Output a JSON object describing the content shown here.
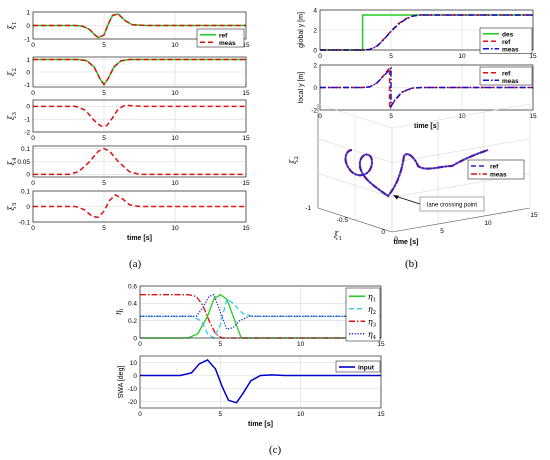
{
  "captions": {
    "a": "(a)",
    "b": "(b)",
    "c": "(c)"
  },
  "colors": {
    "ref": "#22cc22",
    "meas": "#dd1111",
    "des": "#22cc22",
    "ref_b": "#dd1111",
    "meas_b": "#1111cc",
    "eta1": "#22cc22",
    "eta2": "#33ccee",
    "eta3": "#dd1111",
    "eta4": "#2222cc",
    "input": "#0000cc",
    "grid": "#d9d9d9"
  },
  "chart_data": [
    {
      "id": "xi1",
      "type": "line",
      "panel": "a",
      "ylabel_main": "ξ",
      "ylabel_sub": "1",
      "xlim": [
        0,
        15
      ],
      "ylim": [
        -1,
        1
      ],
      "xticks": [
        0,
        5,
        10,
        15
      ],
      "yticks": [
        -1,
        0,
        1
      ],
      "legend": "top-right",
      "series": [
        {
          "name": "ref",
          "style": "solid",
          "color": "#22cc22",
          "x": [
            0,
            3,
            3.5,
            4,
            4.3,
            4.6,
            5,
            5.3,
            5.6,
            6,
            6.5,
            7,
            8,
            15
          ],
          "y": [
            0,
            0,
            -0.05,
            -0.3,
            -0.65,
            -0.9,
            -0.7,
            0.1,
            0.75,
            0.85,
            0.35,
            0.05,
            0,
            0
          ]
        },
        {
          "name": "meas",
          "style": "dashed",
          "color": "#dd1111",
          "x": [
            0,
            3,
            3.5,
            4,
            4.3,
            4.6,
            5,
            5.3,
            5.6,
            6,
            6.5,
            7,
            8,
            15
          ],
          "y": [
            0,
            0,
            -0.05,
            -0.3,
            -0.65,
            -0.9,
            -0.7,
            0.1,
            0.75,
            0.85,
            0.35,
            0.05,
            0,
            0
          ]
        }
      ]
    },
    {
      "id": "xi2",
      "type": "line",
      "panel": "a",
      "ylabel_main": "ξ",
      "ylabel_sub": "2",
      "xlim": [
        0,
        15
      ],
      "ylim": [
        -1.2,
        1.2
      ],
      "xticks": [
        0,
        5,
        10,
        15
      ],
      "yticks": [
        -1,
        0,
        1
      ],
      "series": [
        {
          "name": "ref",
          "style": "solid",
          "color": "#22cc22",
          "x": [
            0,
            3.2,
            3.8,
            4.3,
            4.7,
            5,
            5.3,
            5.7,
            6.2,
            6.8,
            15
          ],
          "y": [
            1,
            1,
            0.9,
            0.4,
            -0.5,
            -1,
            -0.5,
            0.4,
            0.9,
            1,
            1
          ]
        },
        {
          "name": "meas",
          "style": "dashed",
          "color": "#dd1111",
          "x": [
            0,
            3.2,
            3.8,
            4.3,
            4.7,
            5,
            5.3,
            5.7,
            6.2,
            6.8,
            15
          ],
          "y": [
            1,
            1,
            0.9,
            0.4,
            -0.5,
            -1,
            -0.5,
            0.4,
            0.9,
            1,
            1
          ]
        }
      ]
    },
    {
      "id": "xi3",
      "type": "line",
      "panel": "a",
      "ylabel_main": "ξ",
      "ylabel_sub": "3",
      "xlim": [
        0,
        15
      ],
      "ylim": [
        -2,
        0.5
      ],
      "xticks": [
        0,
        5,
        10,
        15
      ],
      "yticks": [
        -2,
        -1,
        0
      ],
      "series": [
        {
          "name": "meas",
          "style": "dashed",
          "color": "#dd1111",
          "x": [
            0,
            3,
            3.7,
            4.3,
            4.8,
            5.2,
            5.6,
            6,
            6.5,
            7,
            8,
            15
          ],
          "y": [
            0,
            0,
            -0.3,
            -1.1,
            -1.55,
            -1.5,
            -0.9,
            -0.2,
            0.1,
            0.05,
            0,
            0
          ]
        }
      ]
    },
    {
      "id": "xi4",
      "type": "line",
      "panel": "a",
      "ylabel_main": "ξ",
      "ylabel_sub": "4",
      "xlim": [
        0,
        15
      ],
      "ylim": [
        -0.01,
        0.11
      ],
      "xticks": [
        0,
        5,
        10,
        15
      ],
      "yticks": [
        0,
        0.05,
        0.1
      ],
      "series": [
        {
          "name": "meas",
          "style": "dashed",
          "color": "#dd1111",
          "x": [
            0,
            2.5,
            3.2,
            4,
            4.6,
            5,
            5.4,
            6,
            6.8,
            7.5,
            15
          ],
          "y": [
            0,
            0,
            0.01,
            0.05,
            0.09,
            0.1,
            0.09,
            0.05,
            0.01,
            0,
            0
          ]
        }
      ]
    },
    {
      "id": "xi5",
      "type": "line",
      "panel": "a",
      "ylabel_main": "ξ",
      "ylabel_sub": "5",
      "xlim": [
        0,
        15
      ],
      "ylim": [
        -0.1,
        0.1
      ],
      "xticks": [
        0,
        5,
        10,
        15
      ],
      "yticks": [
        -0.1,
        0,
        0.1
      ],
      "xlabel": "time [s]",
      "series": [
        {
          "name": "meas",
          "style": "dashed",
          "color": "#dd1111",
          "x": [
            0,
            3,
            3.6,
            4.2,
            4.6,
            5,
            5.4,
            5.8,
            6.3,
            6.8,
            7.5,
            15
          ],
          "y": [
            0,
            0,
            -0.02,
            -0.065,
            -0.07,
            -0.03,
            0.04,
            0.075,
            0.05,
            0.01,
            0,
            0
          ]
        }
      ]
    },
    {
      "id": "globaly",
      "type": "line",
      "panel": "b",
      "ylabel": "global y [m]",
      "xlim": [
        0,
        15
      ],
      "ylim": [
        0,
        4
      ],
      "xticks": [
        0,
        5,
        10,
        15
      ],
      "yticks": [
        0,
        2,
        4
      ],
      "legend": "bottom-right",
      "series": [
        {
          "name": "des",
          "style": "solid",
          "color": "#22cc22",
          "x": [
            0,
            3,
            3,
            15
          ],
          "y": [
            0,
            0,
            3.5,
            3.5
          ]
        },
        {
          "name": "ref",
          "style": "dashed",
          "color": "#dd1111",
          "x": [
            0,
            3,
            3.5,
            4,
            4.5,
            5,
            5.5,
            6,
            6.5,
            7,
            15
          ],
          "y": [
            0,
            0,
            0.05,
            0.4,
            1.1,
            1.9,
            2.6,
            3.1,
            3.4,
            3.5,
            3.5
          ]
        },
        {
          "name": "meas",
          "style": "dashdot",
          "color": "#1111cc",
          "x": [
            0,
            3,
            3.5,
            4,
            4.5,
            5,
            5.5,
            6,
            6.5,
            7,
            15
          ],
          "y": [
            0,
            0,
            0.05,
            0.35,
            1.05,
            1.85,
            2.55,
            3.05,
            3.38,
            3.5,
            3.5
          ]
        }
      ]
    },
    {
      "id": "localy",
      "type": "line",
      "panel": "b",
      "ylabel": "local y [m]",
      "xlabel": "time [s]",
      "xlim": [
        0,
        15
      ],
      "ylim": [
        -2,
        2
      ],
      "xticks": [
        0,
        5,
        10,
        15
      ],
      "yticks": [
        -2,
        0,
        2
      ],
      "legend": "top-right",
      "series": [
        {
          "name": "ref",
          "style": "dashed",
          "color": "#dd1111",
          "x": [
            0,
            3,
            3.5,
            4,
            4.5,
            4.9,
            4.9,
            5.3,
            5.8,
            6.5,
            7.2,
            15
          ],
          "y": [
            0,
            0,
            0.05,
            0.4,
            1.1,
            1.75,
            -1.75,
            -1.1,
            -0.4,
            -0.05,
            0,
            0
          ]
        },
        {
          "name": "meas",
          "style": "dashdot",
          "color": "#1111cc",
          "x": [
            0,
            3,
            3.5,
            4,
            4.5,
            5,
            5,
            5.3,
            5.8,
            6.5,
            7.2,
            15
          ],
          "y": [
            0,
            0,
            0.05,
            0.38,
            1.05,
            1.7,
            -1.7,
            -1.05,
            -0.38,
            -0.05,
            0,
            0
          ]
        }
      ]
    },
    {
      "id": "traj3d",
      "type": "line",
      "panel": "b",
      "ylabel": "ξ",
      "ylabel_sub": "2",
      "xlabel": "ξ",
      "xlabel_sub": "1",
      "depth_label": "time [s]",
      "annotation": "lane crossing point",
      "xticks": [
        -1,
        -0.5,
        0
      ],
      "depth_ticks": [
        0,
        5,
        10,
        15
      ],
      "legend": "top-right",
      "series": [
        {
          "name": "ref",
          "style": "dashed",
          "color": "#2222cc"
        },
        {
          "name": "meas",
          "style": "dashdot",
          "color": "#dd1111"
        }
      ]
    },
    {
      "id": "eta",
      "type": "line",
      "panel": "c",
      "ylabel_main": "η",
      "ylabel_sub": "i",
      "xlim": [
        0,
        15
      ],
      "ylim": [
        0,
        0.6
      ],
      "xticks": [
        0,
        5,
        10,
        15
      ],
      "yticks": [
        0,
        0.2,
        0.4,
        0.6
      ],
      "legend": "right",
      "series": [
        {
          "name": "η1",
          "label_main": "η",
          "label_sub": "1",
          "style": "solid",
          "color": "#22cc22",
          "x": [
            0,
            3,
            3.6,
            4.2,
            4.6,
            5,
            5.4,
            5.8,
            6.3,
            15
          ],
          "y": [
            0,
            0,
            0.05,
            0.25,
            0.45,
            0.5,
            0.45,
            0.25,
            0,
            0
          ]
        },
        {
          "name": "η2",
          "label_main": "η",
          "label_sub": "2",
          "style": "dashed",
          "color": "#33ccee",
          "x": [
            0,
            3.2,
            3.8,
            4.2,
            4.6,
            5,
            5.4,
            5.8,
            6.4,
            7,
            15
          ],
          "y": [
            0.25,
            0.25,
            0.2,
            0.05,
            0,
            0.15,
            0.45,
            0.4,
            0.28,
            0.25,
            0.25
          ]
        },
        {
          "name": "η3",
          "label_main": "η",
          "label_sub": "3",
          "style": "dashdot",
          "color": "#dd1111",
          "x": [
            0,
            3,
            3.5,
            3.9,
            4.3,
            4.7,
            5.1,
            5.5,
            5.9,
            6.3,
            15
          ],
          "y": [
            0.5,
            0.5,
            0.48,
            0.38,
            0.2,
            0.05,
            0,
            0,
            0,
            0,
            0
          ]
        },
        {
          "name": "η4",
          "label_main": "η",
          "label_sub": "4",
          "style": "dotted",
          "color": "#2222cc",
          "x": [
            0,
            3.5,
            3.9,
            4.3,
            4.6,
            5,
            5.4,
            5.8,
            6.2,
            6.8,
            15
          ],
          "y": [
            0.25,
            0.25,
            0.35,
            0.48,
            0.5,
            0.3,
            0.1,
            0.12,
            0.2,
            0.25,
            0.25
          ]
        }
      ]
    },
    {
      "id": "swa",
      "type": "line",
      "panel": "c",
      "ylabel": "SWA [deg]",
      "xlabel": "time [s]",
      "xlim": [
        0,
        15
      ],
      "ylim": [
        -25,
        15
      ],
      "xticks": [
        0,
        5,
        10,
        15
      ],
      "yticks": [
        -20,
        -10,
        0,
        10
      ],
      "legend": "top-right",
      "series": [
        {
          "name": "input",
          "style": "solid",
          "color": "#0000cc",
          "x": [
            0,
            2.5,
            3.2,
            3.7,
            4.2,
            4.7,
            5.1,
            5.5,
            6,
            6.4,
            6.9,
            7.5,
            8.2,
            9,
            15
          ],
          "y": [
            0,
            0,
            2,
            9,
            12,
            5,
            -8,
            -19,
            -21,
            -14,
            -4,
            0,
            0.5,
            0,
            0
          ]
        }
      ]
    }
  ]
}
